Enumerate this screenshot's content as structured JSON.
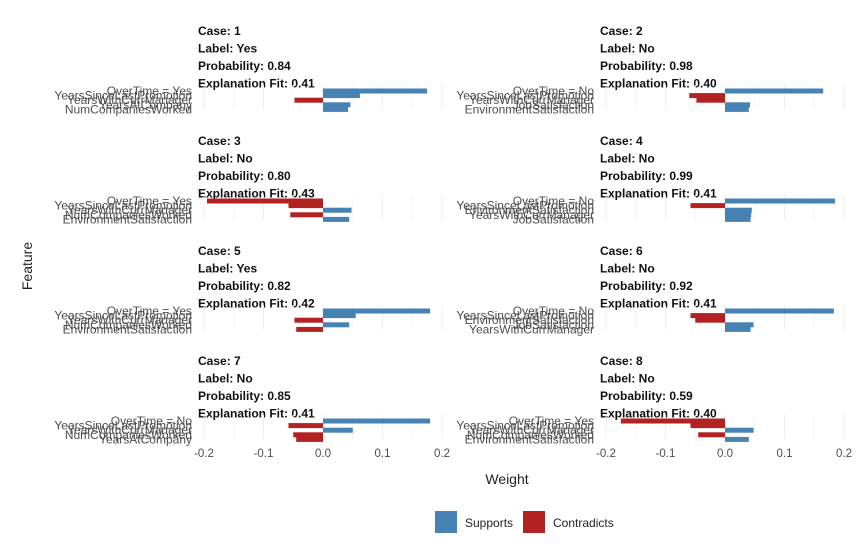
{
  "chart_data": {
    "type": "bar",
    "orientation": "horizontal",
    "xlabel": "Weight",
    "ylabel": "Feature",
    "xlim": [
      -0.2,
      0.2
    ],
    "xticks": [
      -0.2,
      -0.1,
      0.0,
      0.1,
      0.2
    ],
    "xtick_labels": [
      "-0.2",
      "-0.1",
      "0.0",
      "0.1",
      "0.2"
    ],
    "grid": true,
    "legend": {
      "position": "bottom",
      "entries": [
        {
          "label": "Supports",
          "color": "#4682B4"
        },
        {
          "label": "Contradicts",
          "color": "#B22222"
        }
      ]
    },
    "panels": [
      {
        "case": "Case: 1",
        "label": "Label: Yes",
        "probability": "Probability: 0.84",
        "fit": "Explanation Fit: 0.41",
        "features": [
          "OverTime = Yes",
          "YearsSinceLastPromotion",
          "YearsWithCurrManager",
          "YearsAtCompany",
          "NumCompaniesWorked"
        ],
        "weights": [
          0.175,
          0.062,
          -0.048,
          0.046,
          0.042
        ]
      },
      {
        "case": "Case: 2",
        "label": "Label: No",
        "probability": "Probability: 0.98",
        "fit": "Explanation Fit: 0.40",
        "features": [
          "OverTime = No",
          "YearsSinceLastPromotion",
          "YearsWithCurrManager",
          "JobSatisfaction",
          "EnvironmentSatisfaction"
        ],
        "weights": [
          0.165,
          -0.06,
          -0.048,
          0.042,
          0.04
        ]
      },
      {
        "case": "Case: 3",
        "label": "Label: No",
        "probability": "Probability: 0.80",
        "fit": "Explanation Fit: 0.43",
        "features": [
          "OverTime = Yes",
          "YearsSinceLastPromotion",
          "YearsWithCurrManager",
          "NumCompaniesWorked",
          "EnvironmentSatisfaction"
        ],
        "weights": [
          -0.195,
          -0.058,
          0.048,
          -0.055,
          0.044
        ]
      },
      {
        "case": "Case: 4",
        "label": "Label: No",
        "probability": "Probability: 0.99",
        "fit": "Explanation Fit: 0.41",
        "features": [
          "OverTime = No",
          "YearsSinceLastPromotion",
          "EnvironmentSatisfaction",
          "YearsWithCurrManager",
          "JobSatisfaction"
        ],
        "weights": [
          0.185,
          -0.058,
          0.045,
          0.044,
          0.043
        ]
      },
      {
        "case": "Case: 5",
        "label": "Label: Yes",
        "probability": "Probability: 0.82",
        "fit": "Explanation Fit: 0.42",
        "features": [
          "OverTime = Yes",
          "YearsSinceLastPromotion",
          "YearsWithCurrManager",
          "NumCompaniesWorked",
          "EnvironmentSatisfaction"
        ],
        "weights": [
          0.18,
          0.055,
          -0.048,
          0.044,
          -0.045
        ]
      },
      {
        "case": "Case: 6",
        "label": "Label: No",
        "probability": "Probability: 0.92",
        "fit": "Explanation Fit: 0.41",
        "features": [
          "OverTime = No",
          "YearsSinceLastPromotion",
          "EnvironmentSatisfaction",
          "JobSatisfaction",
          "YearsWithCurrManager"
        ],
        "weights": [
          0.183,
          -0.058,
          -0.05,
          0.048,
          0.043
        ]
      },
      {
        "case": "Case: 7",
        "label": "Label: No",
        "probability": "Probability: 0.85",
        "fit": "Explanation Fit: 0.41",
        "features": [
          "OverTime = No",
          "YearsSinceLastPromotion",
          "YearsWithCurrManager",
          "NumCompaniesWorked",
          "YearsAtCompany"
        ],
        "weights": [
          0.18,
          -0.058,
          0.05,
          -0.05,
          -0.045
        ]
      },
      {
        "case": "Case: 8",
        "label": "Label: No",
        "probability": "Probability: 0.59",
        "fit": "Explanation Fit: 0.40",
        "features": [
          "OverTime = Yes",
          "YearsSinceLastPromotion",
          "YearsWithCurrManager",
          "NumCompaniesWorked",
          "EnvironmentSatisfaction"
        ],
        "weights": [
          -0.175,
          -0.058,
          0.048,
          -0.045,
          0.04
        ]
      }
    ]
  }
}
